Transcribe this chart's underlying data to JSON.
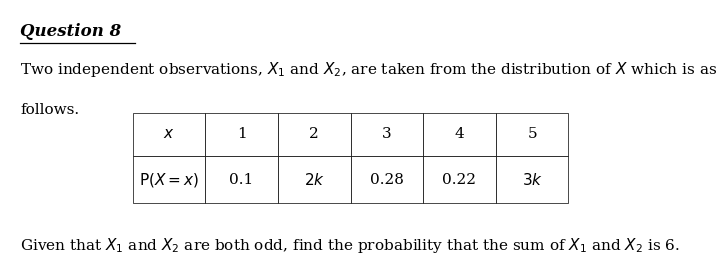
{
  "title": "Question 8",
  "para1": "Two independent observations, $X_1$ and $X_2$, are taken from the distribution of $X$ which is as",
  "para1b": "follows.",
  "table_headers": [
    "$x$",
    "1",
    "2",
    "3",
    "4",
    "5"
  ],
  "table_row": [
    "$\\mathrm{P}(X = x)$",
    "0.1",
    "$2k$",
    "0.28",
    "0.22",
    "$3k$"
  ],
  "footer": "Given that $X_1$ and $X_2$ are both odd, find the probability that the sum of $X_1$ and $X_2$ is 6.",
  "bg_color": "#ffffff",
  "text_color": "#000000",
  "font_size": 11,
  "title_font_size": 12
}
